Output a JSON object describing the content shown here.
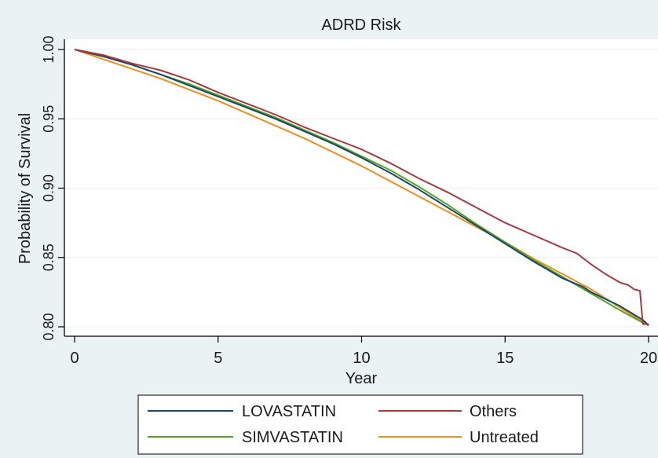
{
  "chart_data": {
    "type": "line",
    "title": "ADRD Risk",
    "xlabel": "Year",
    "ylabel": "Probability of Survival",
    "xlim": [
      0,
      20
    ],
    "ylim": [
      0.8,
      1.0
    ],
    "x_ticks": [
      0,
      5,
      10,
      15,
      20
    ],
    "x_tick_labels": [
      "0",
      "5",
      "10",
      "15",
      "20"
    ],
    "y_ticks": [
      0.8,
      0.85,
      0.9,
      0.95,
      1.0
    ],
    "y_tick_labels": [
      "0.80",
      "0.85",
      "0.90",
      "0.95",
      "1.00"
    ],
    "grid": "horizontal",
    "legend_position": "bottom",
    "colors": {
      "outer_background": "#eaf2f3",
      "plot_background": "#ffffff",
      "grid": "#eaf2f3"
    },
    "series": [
      {
        "name": "LOVASTATIN",
        "color": "#1a476f",
        "x": [
          0,
          1,
          2,
          3,
          4,
          5,
          6,
          7,
          8,
          9,
          10,
          11,
          12,
          13,
          14,
          15,
          16,
          17,
          17.7,
          18,
          19,
          19.8,
          20
        ],
        "y": [
          1.0,
          0.995,
          0.989,
          0.982,
          0.974,
          0.966,
          0.958,
          0.95,
          0.941,
          0.932,
          0.922,
          0.911,
          0.899,
          0.886,
          0.873,
          0.86,
          0.847,
          0.835,
          0.829,
          0.825,
          0.815,
          0.805,
          0.801
        ]
      },
      {
        "name": "SIMVASTATIN",
        "color": "#55a51c",
        "x": [
          0,
          1,
          2,
          3,
          4,
          5,
          6,
          7,
          8,
          9,
          10,
          11,
          12,
          13,
          14,
          15,
          16,
          17,
          18,
          19,
          19.8,
          20
        ],
        "y": [
          1.0,
          0.995,
          0.989,
          0.982,
          0.975,
          0.967,
          0.959,
          0.951,
          0.942,
          0.933,
          0.923,
          0.913,
          0.901,
          0.888,
          0.874,
          0.861,
          0.848,
          0.836,
          0.824,
          0.812,
          0.803,
          0.801
        ]
      },
      {
        "name": "Others",
        "color": "#a63a3f",
        "x": [
          0,
          1,
          2,
          3,
          4,
          5,
          6,
          7,
          8,
          9,
          10,
          11,
          12,
          13,
          14,
          15,
          16,
          17,
          17.5,
          18,
          18.5,
          19,
          19.3,
          19.5,
          19.7,
          19.8,
          20
        ],
        "y": [
          1.0,
          0.996,
          0.99,
          0.985,
          0.978,
          0.969,
          0.961,
          0.953,
          0.944,
          0.936,
          0.928,
          0.918,
          0.907,
          0.897,
          0.886,
          0.875,
          0.866,
          0.857,
          0.853,
          0.845,
          0.838,
          0.832,
          0.83,
          0.827,
          0.826,
          0.802,
          0.802
        ]
      },
      {
        "name": "Untreated",
        "color": "#f28c1a",
        "x": [
          0,
          1,
          2,
          3,
          4,
          5,
          6,
          7,
          8,
          9,
          10,
          11,
          12,
          13,
          14,
          15,
          16,
          17,
          18,
          19,
          20
        ],
        "y": [
          1.0,
          0.993,
          0.986,
          0.979,
          0.971,
          0.963,
          0.954,
          0.945,
          0.936,
          0.926,
          0.916,
          0.905,
          0.894,
          0.883,
          0.872,
          0.861,
          0.849,
          0.838,
          0.827,
          0.814,
          0.801
        ]
      }
    ],
    "legend_order": [
      "LOVASTATIN",
      "Others",
      "SIMVASTATIN",
      "Untreated"
    ]
  }
}
